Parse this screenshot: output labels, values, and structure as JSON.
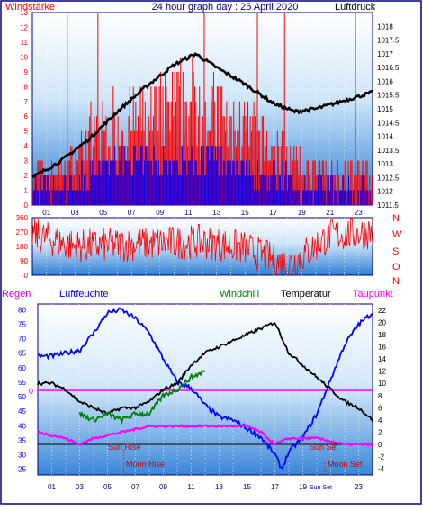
{
  "header": {
    "left_label": "Windstärke",
    "title": "24 hour graph day : 25 April 2020",
    "right_label": "Luftdruck"
  },
  "colors": {
    "wind": "#ff0000",
    "gust": "#0000ff",
    "pressure": "#000000",
    "humidity": "#0000ff",
    "windchill": "#008000",
    "temperature": "#000000",
    "dewpoint": "#ff00ff",
    "rain_label": "#cc00cc",
    "border": "#000080"
  },
  "legend": {
    "regen": "Regen",
    "luftfeuchte": "Luftfeuchte",
    "windchill": "Windchill",
    "temperatur": "Temperatur",
    "taupunkt": "Taupunkt"
  },
  "direction_labels": [
    "N",
    "W",
    "S",
    "O",
    "N"
  ],
  "annotations": {
    "sun_rise": "Sun Rise",
    "sun_set": "Sun Set",
    "moon_rise": "Moon Rise",
    "moon_set": "Moon Set",
    "sun_set_short": "Sun Set"
  },
  "chart_data": [
    {
      "type": "bar",
      "name": "wind-pressure",
      "x_ticks": [
        "01",
        "03",
        "05",
        "07",
        "09",
        "11",
        "13",
        "15",
        "17",
        "19",
        "21",
        "23"
      ],
      "y_left_ticks": [
        0,
        1,
        2,
        3,
        4,
        5,
        6,
        7,
        8,
        9,
        10,
        11,
        12,
        13
      ],
      "y_right_ticks": [
        1011.5,
        1012,
        1012.5,
        1013,
        1013.5,
        1014,
        1014.5,
        1015,
        1015.5,
        1016,
        1016.5,
        1017,
        1017.5,
        1018
      ],
      "ylim_left": [
        0,
        13
      ],
      "ylim_right": [
        1011.5,
        1018.5
      ],
      "pressure": {
        "hours": [
          0,
          2,
          4,
          6,
          8,
          10,
          11.5,
          13,
          15,
          17,
          18.5,
          20,
          22,
          24
        ],
        "values": [
          1012.5,
          1013.1,
          1013.9,
          1014.9,
          1015.8,
          1016.6,
          1017.0,
          1016.5,
          1015.9,
          1015.2,
          1014.9,
          1015.0,
          1015.3,
          1015.6
        ]
      },
      "wind_profile": {
        "hours": [
          0,
          2,
          4,
          6,
          8,
          10,
          12,
          14,
          16,
          18,
          19,
          21,
          24
        ],
        "values": [
          2,
          2,
          4,
          5,
          5,
          6,
          6,
          5,
          4,
          3,
          2,
          2,
          2
        ]
      },
      "gust_profile": {
        "hours": [
          0,
          2,
          4,
          6,
          8,
          10,
          12,
          14,
          16,
          18,
          19,
          21,
          24
        ],
        "values": [
          1,
          1,
          2,
          3,
          3,
          3,
          3,
          3,
          2,
          2,
          1,
          1,
          1
        ]
      }
    },
    {
      "type": "line",
      "name": "wind-direction",
      "y_ticks": [
        0,
        90,
        180,
        270,
        360
      ],
      "ylim": [
        0,
        360
      ],
      "profile": {
        "hours": [
          0,
          1,
          3,
          6,
          9,
          12,
          15,
          18,
          19,
          21,
          24
        ],
        "values": [
          260,
          230,
          180,
          190,
          200,
          210,
          170,
          60,
          120,
          250,
          270
        ]
      }
    },
    {
      "type": "line",
      "name": "climate",
      "y_left_ticks": [
        25,
        30,
        35,
        40,
        45,
        50,
        55,
        60,
        65,
        70,
        75,
        80
      ],
      "y_right_ticks": [
        -4,
        -2,
        0,
        2,
        4,
        6,
        8,
        10,
        12,
        14,
        16,
        18,
        20,
        22
      ],
      "ylim_left": [
        23,
        82
      ],
      "ylim_right": [
        -5,
        23
      ],
      "rain_marker": "0",
      "series": [
        {
          "name": "Luftfeuchte",
          "hours": [
            0,
            1,
            3,
            4,
            5,
            6,
            7,
            8,
            9,
            10,
            11,
            12,
            13,
            14,
            15,
            16,
            17,
            17.5,
            18,
            19,
            20,
            21,
            22,
            23,
            24
          ],
          "values": [
            64,
            64,
            66,
            72,
            79,
            80,
            77,
            72,
            63,
            55,
            53,
            47,
            43,
            42,
            39,
            36,
            30,
            25,
            31,
            36,
            44,
            56,
            68,
            75,
            79
          ]
        },
        {
          "name": "Temperatur",
          "hours": [
            0,
            1,
            2,
            3,
            4,
            5,
            6,
            7,
            8,
            9,
            10,
            11,
            12,
            13,
            14,
            15,
            16,
            17,
            18,
            19,
            20,
            21,
            22,
            23,
            24
          ],
          "values": [
            10,
            10,
            9,
            7,
            6,
            5,
            6,
            6,
            7,
            9,
            10,
            13,
            15,
            16,
            17,
            18,
            19,
            20,
            15,
            13,
            11,
            9,
            7,
            6,
            4
          ]
        },
        {
          "name": "Windchill",
          "hours": [
            3,
            4,
            5,
            6,
            7,
            8,
            9,
            10,
            11,
            12
          ],
          "values": [
            5,
            4,
            5,
            4,
            5,
            5,
            8,
            9,
            11,
            12
          ]
        },
        {
          "name": "Taupunkt",
          "hours": [
            0,
            2,
            3,
            4,
            6,
            8,
            10,
            12,
            14,
            15,
            16,
            17,
            18,
            20,
            22,
            24
          ],
          "values": [
            2,
            1,
            0,
            1,
            2,
            3,
            3,
            3,
            3,
            3,
            2,
            0,
            1,
            1,
            0,
            0
          ]
        }
      ]
    }
  ]
}
